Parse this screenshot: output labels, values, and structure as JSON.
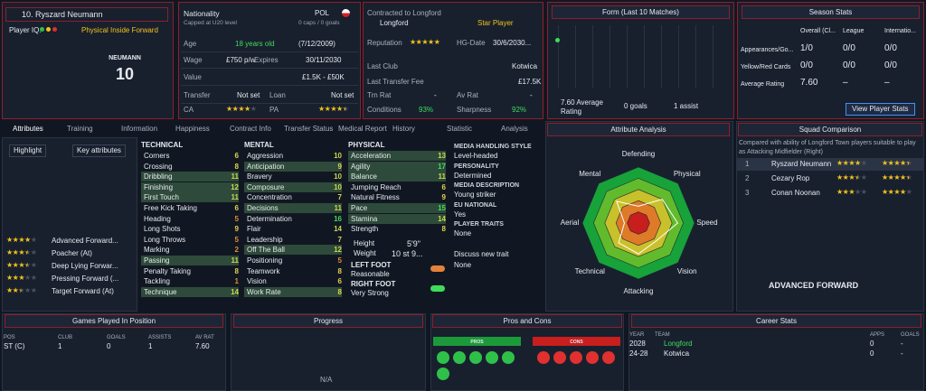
{
  "player": {
    "name": "10. Ryszard Neumann",
    "iq_label": "Player IQ:",
    "role": "Physical Inside Forward",
    "shirt_name": "NEUMANN",
    "shirt_number": "10"
  },
  "info": {
    "nationality_label": "Nationality",
    "caps_level": "Capped at U20 level",
    "nation": "POL",
    "caps": "0 caps / 0 goals",
    "age_label": "Age",
    "age": "18 years old",
    "dob": "(7/12/2009)",
    "wage_label": "Wage",
    "wage": "£750 p/w",
    "expires_label": "Expires",
    "expires": "30/11/2030",
    "value_label": "Value",
    "value": "£1.5K - £50K",
    "transfer_label": "Transfer",
    "transfer": "Not set",
    "loan_label": "Loan",
    "loan": "Not set",
    "ca_label": "CA",
    "ca_stars": 4,
    "pa_label": "PA",
    "pa_stars": 4.5
  },
  "contract": {
    "title": "Contracted to Longford",
    "club": "Longford",
    "status": "Star Player",
    "reputation_label": "Reputation",
    "reputation_stars": 5,
    "hg_label": "HG-Date",
    "hg_date": "30/6/2030...",
    "last_club_label": "Last Club",
    "last_club": "Kotwica",
    "fee_label": "Last Transfer Fee",
    "fee": "£17.5K",
    "trn_label": "Trn Rat",
    "trn": "-",
    "av_label": "Av Rat",
    "av": "-",
    "conditions_label": "Conditions",
    "conditions": "93%",
    "sharpness_label": "Sharpness",
    "sharpness": "92%"
  },
  "form": {
    "title": "Form (Last 10 Matches)",
    "average": "7.60 Average Rating",
    "goals": "0 goals",
    "assists": "1 assist"
  },
  "season": {
    "title": "Season Stats",
    "columns": [
      "Overall (Cl...",
      "League",
      "Internatio..."
    ],
    "rows": [
      {
        "label": "Appearances/Go...",
        "values": [
          "1/0",
          "0/0",
          "0/0"
        ]
      },
      {
        "label": "Yellow/Red Cards",
        "values": [
          "0/0",
          "0/0",
          "0/0"
        ]
      },
      {
        "label": "Average Rating",
        "values": [
          "7.60",
          "–",
          "–"
        ]
      }
    ],
    "button": "View Player Stats"
  },
  "tabs": [
    "Attributes",
    "Training",
    "Information",
    "Happiness",
    "Contract Info",
    "Transfer Status",
    "Medical Report",
    "History",
    "Statistic",
    "Analysis"
  ],
  "highlight": "Highlight",
  "key_attributes": "Key attributes",
  "roles": [
    {
      "name": "Advanced Forward...",
      "stars": 4
    },
    {
      "name": "Poacher (At)",
      "stars": 3.5
    },
    {
      "name": "Deep Lying Forwar...",
      "stars": 3.5
    },
    {
      "name": "Pressing Forward (...",
      "stars": 3
    },
    {
      "name": "Target Forward (At)",
      "stars": 2.5
    }
  ],
  "attributes": [
    {
      "title": "TECHNICAL",
      "items": [
        {
          "name": "Corners",
          "value": 6
        },
        {
          "name": "Crossing",
          "value": 8
        },
        {
          "name": "Dribbling",
          "value": 11,
          "key": true
        },
        {
          "name": "Finishing",
          "value": 12,
          "key": true
        },
        {
          "name": "First Touch",
          "value": 11,
          "key": true
        },
        {
          "name": "Free Kick Taking",
          "value": 6
        },
        {
          "name": "Heading",
          "value": 5
        },
        {
          "name": "Long Shots",
          "value": 9
        },
        {
          "name": "Long Throws",
          "value": 5
        },
        {
          "name": "Marking",
          "value": 2
        },
        {
          "name": "Passing",
          "value": 11,
          "key": true
        },
        {
          "name": "Penalty Taking",
          "value": 8
        },
        {
          "name": "Tackling",
          "value": 1
        },
        {
          "name": "Technique",
          "value": 14,
          "key": true
        }
      ]
    },
    {
      "title": "MENTAL",
      "items": [
        {
          "name": "Aggression",
          "value": 10
        },
        {
          "name": "Anticipation",
          "value": 9,
          "key": true
        },
        {
          "name": "Bravery",
          "value": 10
        },
        {
          "name": "Composure",
          "value": 10,
          "key": true
        },
        {
          "name": "Concentration",
          "value": 7
        },
        {
          "name": "Decisions",
          "value": 11,
          "key": true
        },
        {
          "name": "Determination",
          "value": 16
        },
        {
          "name": "Flair",
          "value": 14
        },
        {
          "name": "Leadership",
          "value": 7
        },
        {
          "name": "Off The Ball",
          "value": 12,
          "key": true
        },
        {
          "name": "Positioning",
          "value": 5
        },
        {
          "name": "Teamwork",
          "value": 8
        },
        {
          "name": "Vision",
          "value": 6
        },
        {
          "name": "Work Rate",
          "value": 8,
          "key": true
        }
      ]
    },
    {
      "title": "PHYSICAL",
      "items": [
        {
          "name": "Acceleration",
          "value": 13,
          "key": true
        },
        {
          "name": "Agility",
          "value": 17,
          "key": true
        },
        {
          "name": "Balance",
          "value": 11,
          "key": true
        },
        {
          "name": "Jumping Reach",
          "value": 6
        },
        {
          "name": "Natural Fitness",
          "value": 9
        },
        {
          "name": "Pace",
          "value": 15,
          "key": true
        },
        {
          "name": "Stamina",
          "value": 14,
          "key": true
        },
        {
          "name": "Strength",
          "value": 8
        }
      ]
    }
  ],
  "body": {
    "height_label": "Height",
    "height": "5'9\"",
    "weight_label": "Weight",
    "weight": "10 st 9...",
    "left_foot_label": "LEFT FOOT",
    "left_foot": "Reasonable",
    "right_foot_label": "RIGHT FOOT",
    "right_foot": "Very Strong"
  },
  "media": [
    {
      "label": "MEDIA HANDLING STYLE",
      "value": "Level-headed"
    },
    {
      "label": "PERSONALITY",
      "value": "Determined"
    },
    {
      "label": "MEDIA DESCRIPTION",
      "value": "Young striker"
    },
    {
      "label": "EU NATIONAL",
      "value": "Yes"
    },
    {
      "label": "PLAYER TRAITS",
      "value": "None"
    }
  ],
  "traits": {
    "action": "Discuss new trait",
    "value": "None"
  },
  "analysis": {
    "title": "Attribute Analysis",
    "axes": [
      "Defending",
      "Physical",
      "Speed",
      "Vision",
      "Attacking",
      "Technical",
      "Aerial",
      "Mental"
    ],
    "values": [
      6,
      12,
      14,
      9,
      11,
      10,
      5,
      11
    ],
    "rlim": [
      0,
      20
    ]
  },
  "squad": {
    "title": "Squad Comparison",
    "note": "Compared with ability of Longford Town players suitable to play as Attacking Midfielder (Right)",
    "players": [
      {
        "rank": "1",
        "name": "Ryszard Neumann",
        "ca": 4,
        "pa": 4.5
      },
      {
        "rank": "2",
        "name": "Cezary Rop",
        "ca": 3.5,
        "pa": 4.5
      },
      {
        "rank": "3",
        "name": "Conan Noonan",
        "ca": 3,
        "pa": 4
      }
    ],
    "role": "ADVANCED FORWARD"
  },
  "positions": {
    "title": "Games Played In Position",
    "columns": [
      "POS",
      "CLUB",
      "GOALS",
      "ASSISTS",
      "AV RAT"
    ],
    "rows": [
      [
        "ST (C)",
        "1",
        "0",
        "1",
        "7.60"
      ]
    ]
  },
  "progress": {
    "title": "Progress",
    "value": "N/A"
  },
  "pros_cons": {
    "title": "Pros and Cons",
    "pros": "PROS",
    "cons": "CONS"
  },
  "career": {
    "title": "Career Stats",
    "columns": [
      "YEAR",
      "TEAM",
      "APPS",
      "GOALS"
    ],
    "rows": [
      [
        "2028",
        "Longford",
        "0",
        "-"
      ],
      [
        "24-28",
        "Kotwica",
        "0",
        "-"
      ]
    ]
  }
}
